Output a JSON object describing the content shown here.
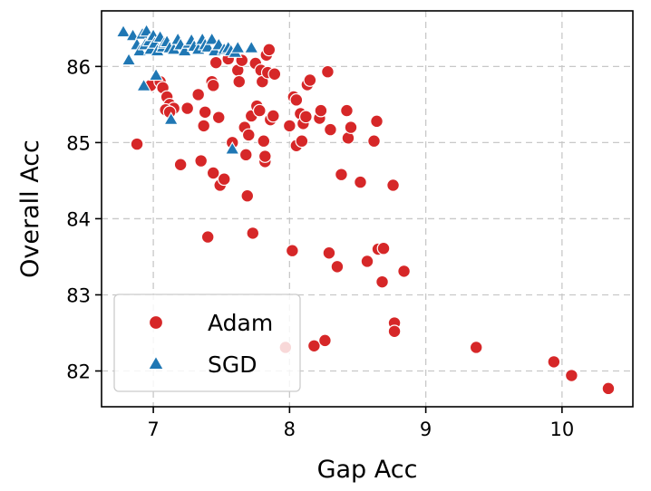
{
  "chart_data": {
    "type": "scatter",
    "title": "",
    "xlabel": "Gap Acc",
    "ylabel": "Overall Acc",
    "xlim": [
      6.62,
      10.52
    ],
    "ylim": [
      81.53,
      86.73
    ],
    "xticks": [
      7,
      8,
      9,
      10
    ],
    "yticks": [
      82,
      83,
      84,
      85,
      86
    ],
    "grid": true,
    "legend_position": "lower-left",
    "series": [
      {
        "name": "Adam",
        "marker": "circle",
        "color": "#d62728",
        "points": [
          [
            6.88,
            84.98
          ],
          [
            6.98,
            85.75
          ],
          [
            7.05,
            85.8
          ],
          [
            7.07,
            85.72
          ],
          [
            7.1,
            85.6
          ],
          [
            7.12,
            85.5
          ],
          [
            7.15,
            85.45
          ],
          [
            7.09,
            85.43
          ],
          [
            7.12,
            85.4
          ],
          [
            7.2,
            84.71
          ],
          [
            7.25,
            85.45
          ],
          [
            7.33,
            85.63
          ],
          [
            7.35,
            84.76
          ],
          [
            7.37,
            85.22
          ],
          [
            7.38,
            85.4
          ],
          [
            7.4,
            83.76
          ],
          [
            7.43,
            85.8
          ],
          [
            7.44,
            84.6
          ],
          [
            7.44,
            85.75
          ],
          [
            7.46,
            86.05
          ],
          [
            7.48,
            85.33
          ],
          [
            7.49,
            84.44
          ],
          [
            7.52,
            84.52
          ],
          [
            7.55,
            86.1
          ],
          [
            7.58,
            85.0
          ],
          [
            7.62,
            85.95
          ],
          [
            7.63,
            85.8
          ],
          [
            7.65,
            86.08
          ],
          [
            7.67,
            85.2
          ],
          [
            7.68,
            84.84
          ],
          [
            7.69,
            84.3
          ],
          [
            7.7,
            85.1
          ],
          [
            7.72,
            85.35
          ],
          [
            7.73,
            83.81
          ],
          [
            7.75,
            86.04
          ],
          [
            7.76,
            85.48
          ],
          [
            7.78,
            85.42
          ],
          [
            7.79,
            85.95
          ],
          [
            7.8,
            85.8
          ],
          [
            7.81,
            85.02
          ],
          [
            7.82,
            84.75
          ],
          [
            7.82,
            84.82
          ],
          [
            7.83,
            86.15
          ],
          [
            7.84,
            85.92
          ],
          [
            7.85,
            86.22
          ],
          [
            7.86,
            85.3
          ],
          [
            7.88,
            85.35
          ],
          [
            7.89,
            85.9
          ],
          [
            8.0,
            85.22
          ],
          [
            8.02,
            83.58
          ],
          [
            8.03,
            85.6
          ],
          [
            8.05,
            85.56
          ],
          [
            8.05,
            84.96
          ],
          [
            8.08,
            85.38
          ],
          [
            8.09,
            85.02
          ],
          [
            8.1,
            85.25
          ],
          [
            8.12,
            85.34
          ],
          [
            8.13,
            85.76
          ],
          [
            8.15,
            85.82
          ],
          [
            8.18,
            82.33
          ],
          [
            8.22,
            85.32
          ],
          [
            8.23,
            85.42
          ],
          [
            8.26,
            82.4
          ],
          [
            8.28,
            85.93
          ],
          [
            8.29,
            83.55
          ],
          [
            8.3,
            85.17
          ],
          [
            8.35,
            83.37
          ],
          [
            8.38,
            84.58
          ],
          [
            8.42,
            85.42
          ],
          [
            8.43,
            85.06
          ],
          [
            8.45,
            85.2
          ],
          [
            8.52,
            84.48
          ],
          [
            8.57,
            83.44
          ],
          [
            8.62,
            85.02
          ],
          [
            8.64,
            85.28
          ],
          [
            8.65,
            83.6
          ],
          [
            8.68,
            83.17
          ],
          [
            8.69,
            83.61
          ],
          [
            8.76,
            84.44
          ],
          [
            8.77,
            82.63
          ],
          [
            8.77,
            82.52
          ],
          [
            8.84,
            83.31
          ],
          [
            7.97,
            82.31
          ],
          [
            9.37,
            82.31
          ],
          [
            9.94,
            82.12
          ],
          [
            10.07,
            81.94
          ],
          [
            10.34,
            81.77
          ]
        ]
      },
      {
        "name": "SGD",
        "marker": "triangle",
        "color": "#1f77b4",
        "points": [
          [
            6.78,
            86.45
          ],
          [
            6.82,
            86.08
          ],
          [
            6.85,
            86.4
          ],
          [
            6.88,
            86.28
          ],
          [
            6.9,
            86.2
          ],
          [
            6.92,
            86.42
          ],
          [
            6.93,
            85.74
          ],
          [
            6.94,
            86.28
          ],
          [
            6.95,
            86.46
          ],
          [
            6.97,
            86.33
          ],
          [
            6.98,
            86.22
          ],
          [
            7.0,
            86.4
          ],
          [
            7.01,
            86.3
          ],
          [
            7.02,
            85.88
          ],
          [
            7.03,
            86.2
          ],
          [
            7.05,
            86.38
          ],
          [
            7.07,
            86.25
          ],
          [
            7.08,
            86.3
          ],
          [
            7.1,
            86.32
          ],
          [
            7.12,
            86.24
          ],
          [
            7.13,
            85.3
          ],
          [
            7.15,
            86.22
          ],
          [
            7.18,
            86.35
          ],
          [
            7.2,
            86.28
          ],
          [
            7.23,
            86.2
          ],
          [
            7.26,
            86.3
          ],
          [
            7.28,
            86.34
          ],
          [
            7.3,
            86.26
          ],
          [
            7.33,
            86.22
          ],
          [
            7.36,
            86.35
          ],
          [
            7.38,
            86.28
          ],
          [
            7.4,
            86.25
          ],
          [
            7.43,
            86.35
          ],
          [
            7.45,
            86.2
          ],
          [
            7.48,
            86.28
          ],
          [
            7.52,
            86.22
          ],
          [
            7.55,
            86.24
          ],
          [
            7.57,
            86.2
          ],
          [
            7.58,
            84.91
          ],
          [
            7.6,
            86.18
          ],
          [
            7.62,
            86.24
          ],
          [
            7.72,
            86.24
          ]
        ]
      }
    ]
  }
}
